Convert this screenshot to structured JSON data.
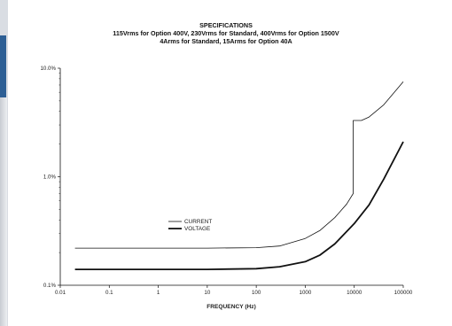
{
  "chart_data": {
    "type": "line",
    "title": "SPECIFICATIONS",
    "subtitle_lines": [
      "115Vrms for Option 400V, 230Vrms for Standard, 400Vrms for Option 1500V",
      "4Arms for Standard, 15Arms for Option 40A"
    ],
    "xlabel": "FREQUENCY (Hz)",
    "ylabel": "",
    "x_scale": "log",
    "y_scale": "log",
    "xlim": [
      0.01,
      100000
    ],
    "ylim": [
      0.1,
      10
    ],
    "x_ticks": [
      0.01,
      0.1,
      1,
      10,
      100,
      1000,
      10000,
      100000
    ],
    "x_tick_labels": [
      "0.01",
      "0.1",
      "1",
      "10",
      "100",
      "1000",
      "10000",
      "100000"
    ],
    "y_ticks": [
      0.1,
      1,
      10
    ],
    "y_tick_labels": [
      "0.1%",
      "1.0%",
      "10.0%"
    ],
    "grid": false,
    "legend_position": "center-left",
    "series": [
      {
        "name": "CURRENT",
        "style": "thin",
        "points": [
          [
            0.02,
            0.22
          ],
          [
            1,
            0.22
          ],
          [
            10,
            0.22
          ],
          [
            100,
            0.222
          ],
          [
            300,
            0.23
          ],
          [
            1000,
            0.27
          ],
          [
            2000,
            0.32
          ],
          [
            4000,
            0.42
          ],
          [
            7000,
            0.56
          ],
          [
            9500,
            0.7
          ],
          [
            9500,
            3.3
          ],
          [
            14000,
            3.3
          ],
          [
            20000,
            3.55
          ],
          [
            40000,
            4.6
          ],
          [
            100000,
            7.5
          ]
        ]
      },
      {
        "name": "VOLTAGE",
        "style": "thick",
        "points": [
          [
            0.02,
            0.14
          ],
          [
            1,
            0.14
          ],
          [
            10,
            0.14
          ],
          [
            100,
            0.142
          ],
          [
            300,
            0.148
          ],
          [
            1000,
            0.165
          ],
          [
            2000,
            0.19
          ],
          [
            4000,
            0.24
          ],
          [
            10000,
            0.37
          ],
          [
            20000,
            0.55
          ],
          [
            40000,
            0.95
          ],
          [
            100000,
            2.1
          ]
        ]
      }
    ]
  }
}
